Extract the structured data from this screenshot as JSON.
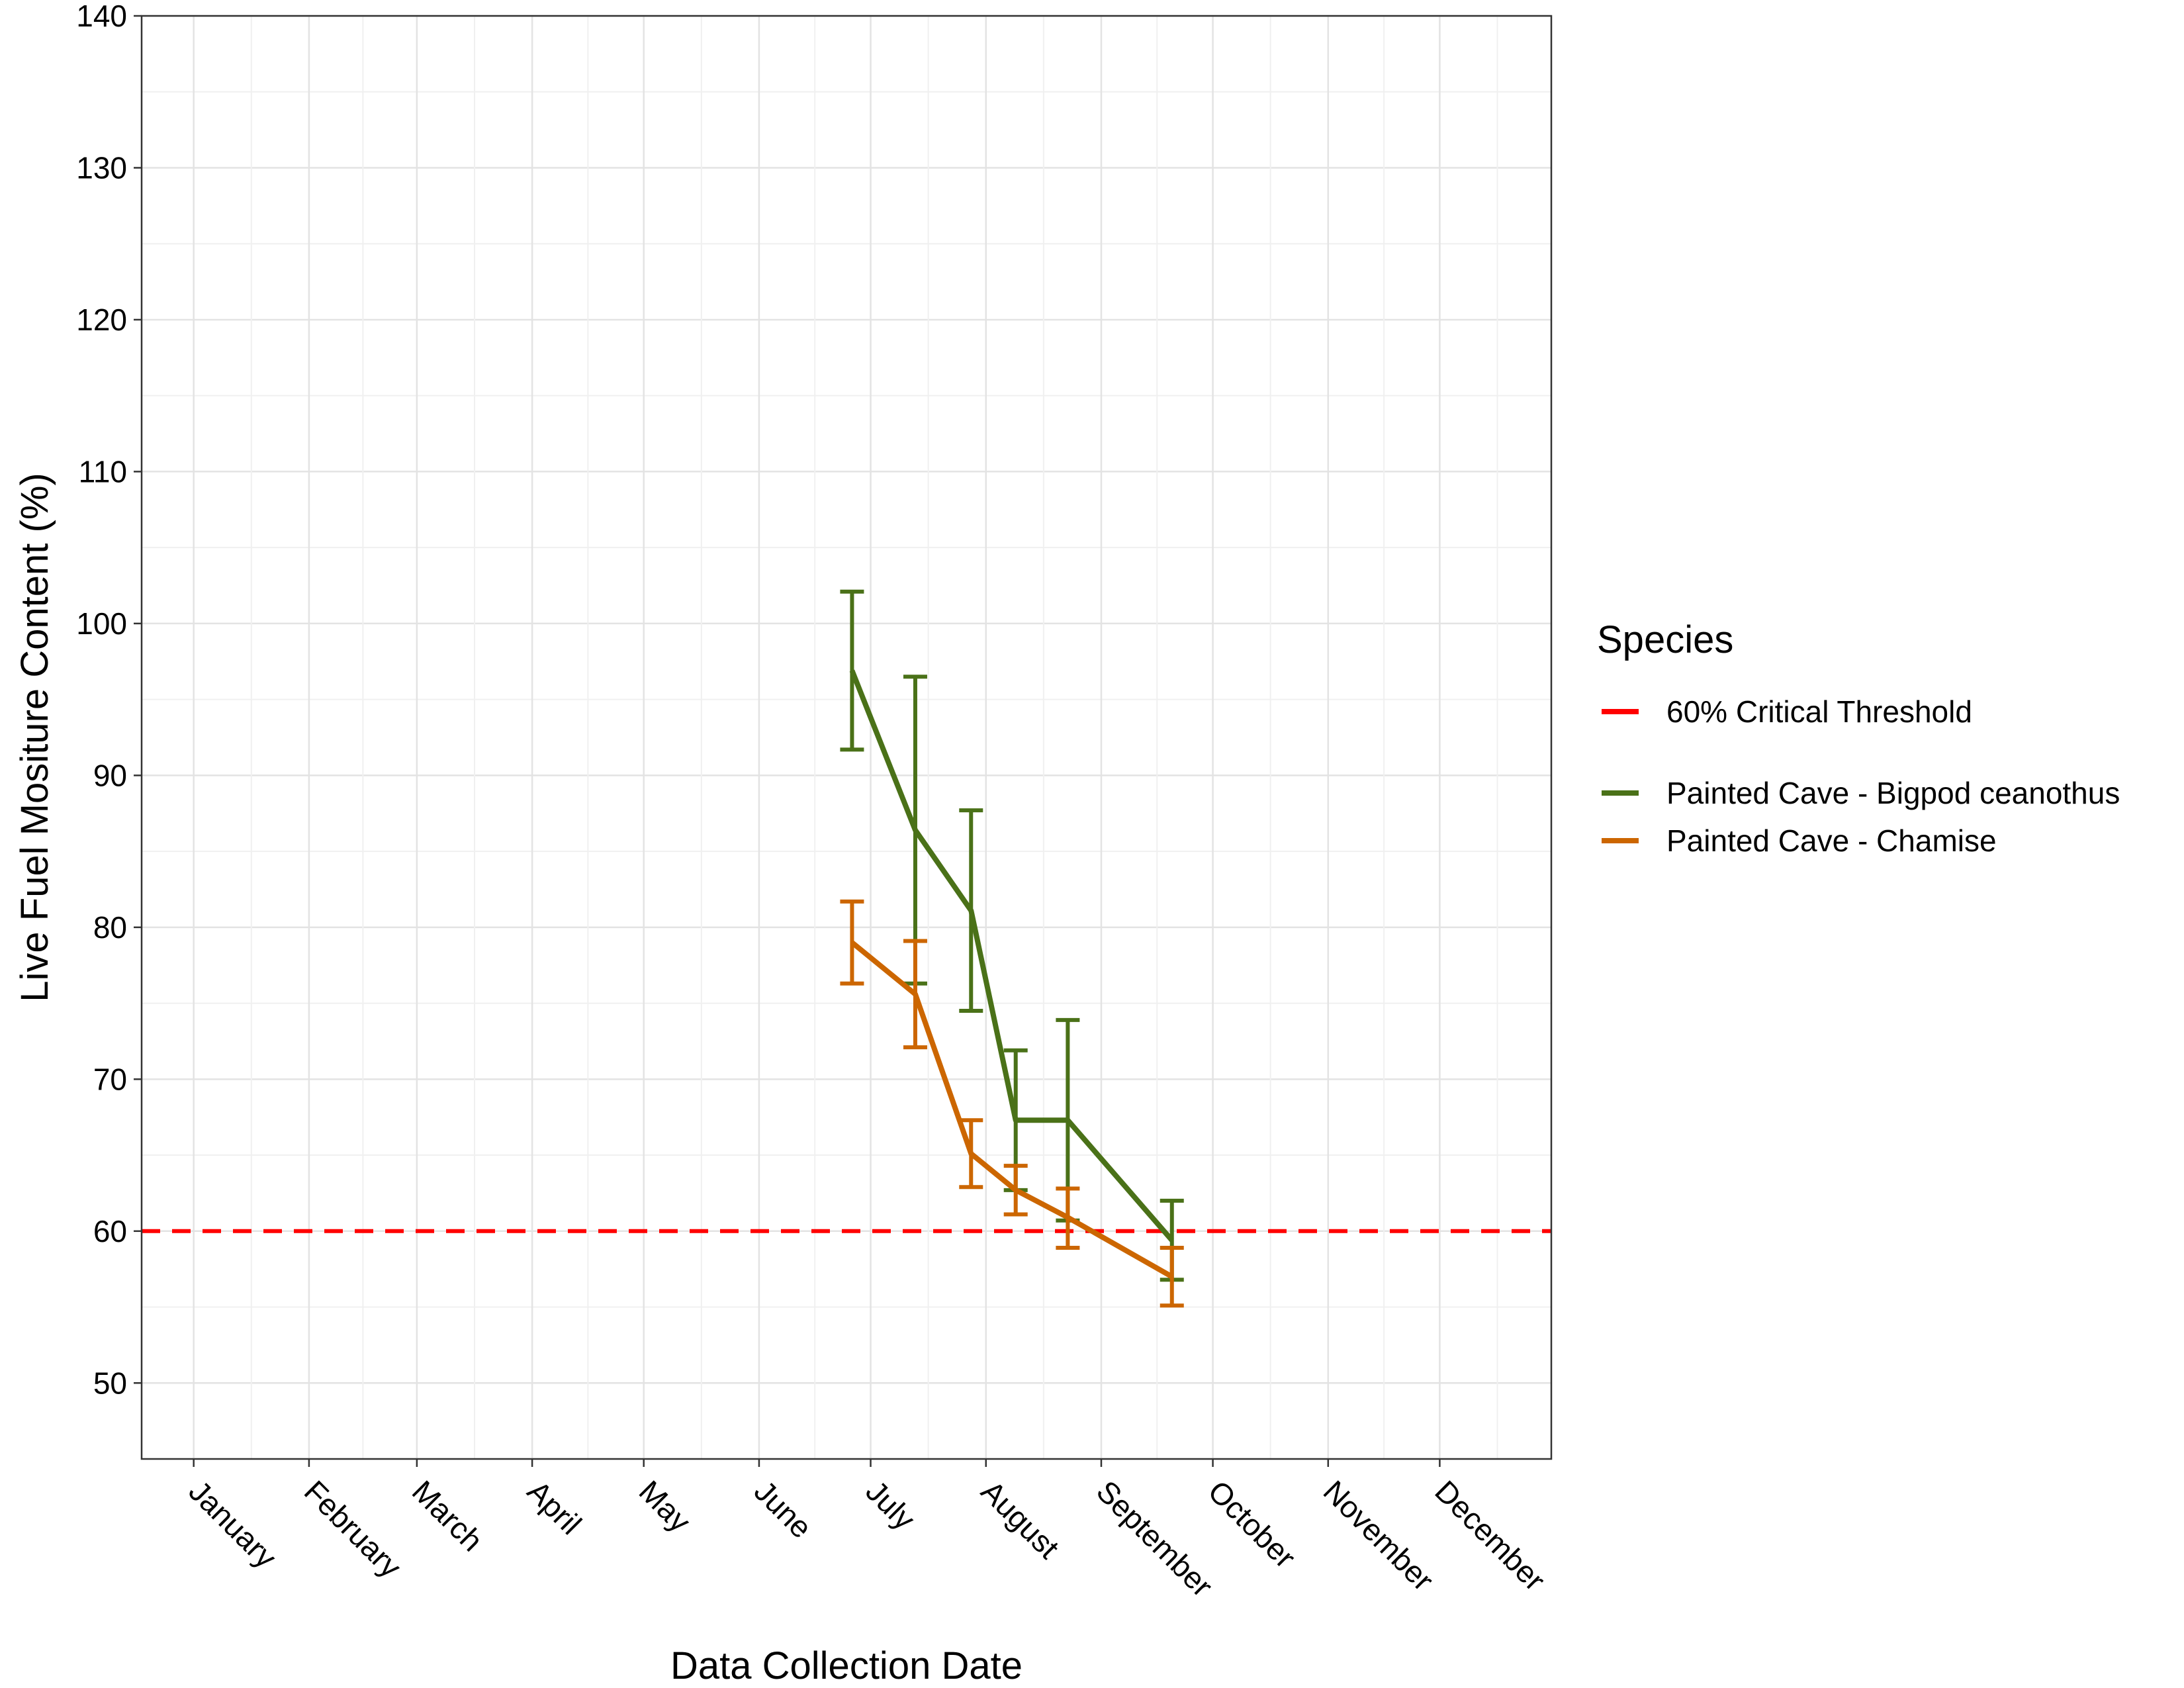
{
  "chart_data": {
    "type": "line",
    "xlabel": "Data Collection Date",
    "ylabel": "Live Fuel Mositure Content (%)",
    "x_ticks": [
      "January",
      "February",
      "March",
      "April",
      "May",
      "June",
      "July",
      "August",
      "September",
      "October",
      "November",
      "December"
    ],
    "x_range": [
      "2023-12-18",
      "2024-12-31"
    ],
    "ylim": [
      45,
      140
    ],
    "y_ticks": [
      50,
      60,
      70,
      80,
      90,
      100,
      110,
      120,
      130,
      140
    ],
    "grid": true,
    "legend": {
      "title": "Species",
      "placement": "right",
      "entries": [
        {
          "label": "60% Critical Threshold",
          "color": "#ff0000",
          "style": "dashed"
        },
        {
          "label": "Painted Cave - Bigpod ceanothus",
          "color": "#4a7118",
          "style": "solid"
        },
        {
          "label": "Painted Cave - Chamise",
          "color": "#cc6600",
          "style": "solid"
        }
      ]
    },
    "threshold": {
      "y": 60,
      "color": "#ff0000",
      "style": "dashed"
    },
    "series": [
      {
        "name": "Painted Cave - Bigpod ceanothus",
        "color": "#4a7118",
        "points": [
          {
            "x": "2024-06-26",
            "y": 96.9,
            "low": 91.7,
            "high": 102.1
          },
          {
            "x": "2024-07-13",
            "y": 86.4,
            "low": 76.3,
            "high": 96.5
          },
          {
            "x": "2024-07-28",
            "y": 81.1,
            "low": 74.5,
            "high": 87.7
          },
          {
            "x": "2024-08-09",
            "y": 67.3,
            "low": 62.7,
            "high": 71.9
          },
          {
            "x": "2024-08-23",
            "y": 67.3,
            "low": 60.7,
            "high": 73.9
          },
          {
            "x": "2024-09-20",
            "y": 59.4,
            "low": 56.8,
            "high": 62.0
          }
        ]
      },
      {
        "name": "Painted Cave - Chamise",
        "color": "#cc6600",
        "points": [
          {
            "x": "2024-06-26",
            "y": 79.0,
            "low": 76.3,
            "high": 81.7
          },
          {
            "x": "2024-07-13",
            "y": 75.6,
            "low": 72.1,
            "high": 79.1
          },
          {
            "x": "2024-07-28",
            "y": 65.1,
            "low": 62.9,
            "high": 67.3
          },
          {
            "x": "2024-08-09",
            "y": 62.7,
            "low": 61.1,
            "high": 64.3
          },
          {
            "x": "2024-08-23",
            "y": 60.9,
            "low": 58.9,
            "high": 62.8
          },
          {
            "x": "2024-09-20",
            "y": 57.0,
            "low": 55.1,
            "high": 58.9
          }
        ]
      }
    ]
  }
}
